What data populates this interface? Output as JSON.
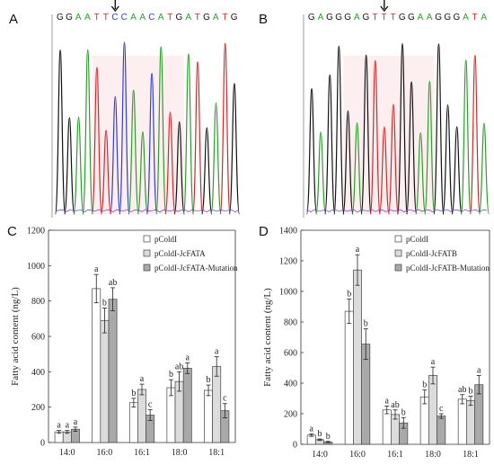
{
  "panels": {
    "A": {
      "label": "A",
      "sequence": [
        "G",
        "G",
        "A",
        "A",
        "T",
        "T",
        "C",
        "C",
        "A",
        "A",
        "C",
        "A",
        "T",
        "G",
        "A",
        "T",
        "G",
        "A",
        "T",
        "G"
      ],
      "arrow_index": 6
    },
    "B": {
      "label": "B",
      "sequence": [
        "G",
        "A",
        "G",
        "G",
        "G",
        "A",
        "G",
        "T",
        "T",
        "T",
        "G",
        "G",
        "A",
        "A",
        "G",
        "G",
        "G",
        "A",
        "T",
        "A"
      ],
      "arrow_index": 8
    }
  },
  "base_colors": {
    "A": "#2aa02a",
    "T": "#d62728",
    "G": "#111111",
    "C": "#2f3fcf"
  },
  "chart_data": [
    {
      "label": "C",
      "type": "bar",
      "categories": [
        "14:0",
        "16:0",
        "16:1",
        "18:0",
        "18:1"
      ],
      "ylabel": "Fatty acid content (ng/L)",
      "ylim": [
        0,
        1200
      ],
      "yticks": [
        0,
        200,
        400,
        600,
        800,
        1000,
        1200
      ],
      "legend_position": "top-right",
      "series": [
        {
          "name": "pColdI",
          "color": "#ffffff",
          "values": [
            60,
            870,
            225,
            310,
            295
          ],
          "errors": [
            8,
            80,
            25,
            45,
            30
          ],
          "letters": [
            "a",
            "a",
            "b",
            "b",
            "b"
          ]
        },
        {
          "name": "pColdI-JcFATA",
          "color": "#dcdcdc",
          "values": [
            60,
            690,
            300,
            345,
            430
          ],
          "errors": [
            8,
            70,
            30,
            55,
            55
          ],
          "letters": [
            "a",
            "b",
            "a",
            "ab",
            "a"
          ]
        },
        {
          "name": "pColdI-JcFATA-Mutation",
          "color": "#a9a9a9",
          "values": [
            75,
            810,
            155,
            420,
            180
          ],
          "errors": [
            12,
            65,
            30,
            30,
            40
          ],
          "letters": [
            "a",
            "ab",
            "c",
            "a",
            "c"
          ]
        }
      ]
    },
    {
      "label": "D",
      "type": "bar",
      "categories": [
        "14:0",
        "16:0",
        "16:1",
        "18:0",
        "18:1"
      ],
      "ylabel": "Fatty acid content (ng/L)",
      "ylim": [
        0,
        1400
      ],
      "yticks": [
        0,
        200,
        400,
        600,
        800,
        1000,
        1200,
        1400
      ],
      "legend_position": "top-right",
      "series": [
        {
          "name": "pColdI",
          "color": "#ffffff",
          "values": [
            60,
            870,
            225,
            310,
            295
          ],
          "errors": [
            8,
            80,
            25,
            45,
            30
          ],
          "letters": [
            "a",
            "b",
            "a",
            "b",
            "ab"
          ]
        },
        {
          "name": "pColdI-JcFATB",
          "color": "#dcdcdc",
          "values": [
            30,
            1140,
            195,
            450,
            285
          ],
          "errors": [
            5,
            100,
            30,
            55,
            30
          ],
          "letters": [
            "b",
            "a",
            "ab",
            "a",
            "b"
          ]
        },
        {
          "name": "pColdI-JcFATB-Mutation",
          "color": "#a9a9a9",
          "values": [
            15,
            655,
            140,
            185,
            390
          ],
          "errors": [
            4,
            100,
            35,
            15,
            60
          ],
          "letters": [
            "b",
            "b",
            "b",
            "c",
            "a"
          ]
        }
      ]
    }
  ]
}
